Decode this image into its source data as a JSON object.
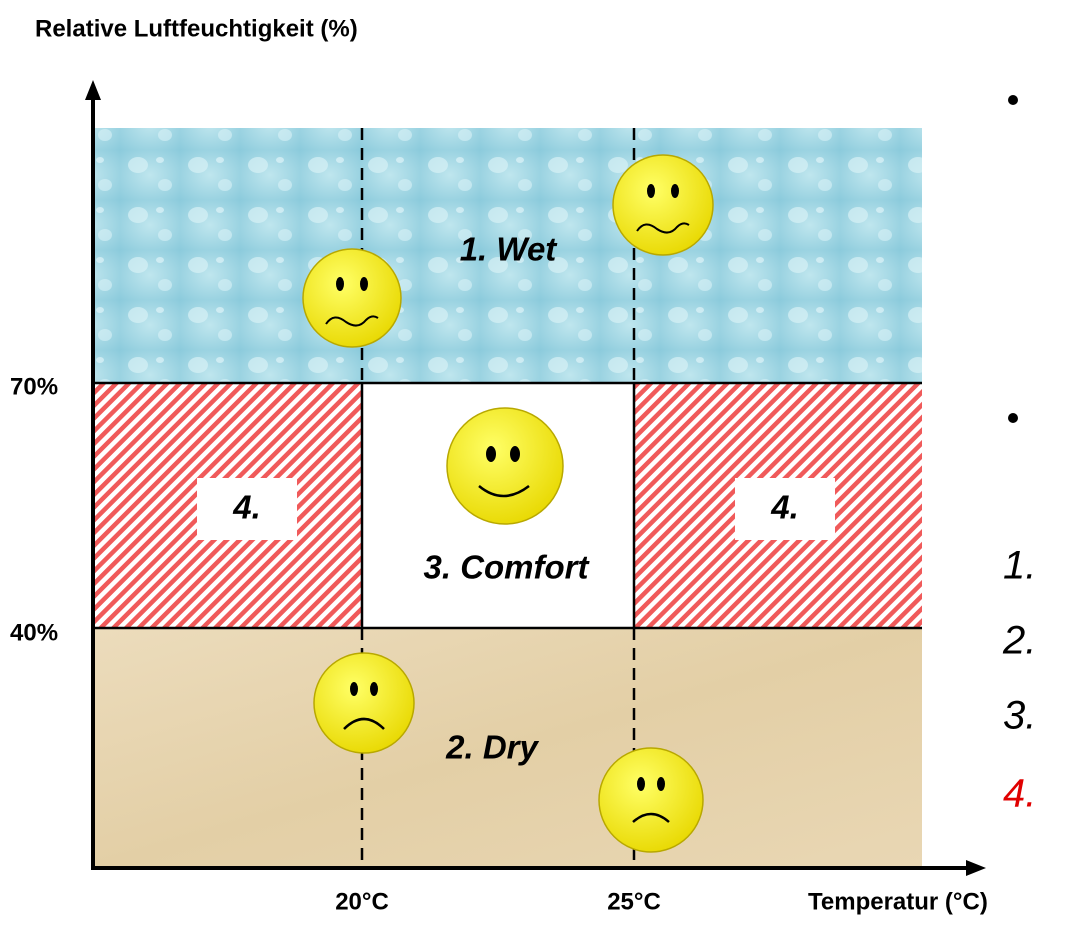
{
  "axis": {
    "y_title": "Relative Luftfeuchtigkeit (%)",
    "x_title": "Temperatur (°C)",
    "y_labels": [
      "70%",
      "40%"
    ],
    "x_labels": [
      "20°C",
      "25°C"
    ]
  },
  "regions": {
    "wet": "1. Wet",
    "comfort": "3. Comfort",
    "dry": "2. Dry",
    "other_left": "4.",
    "other_right": "4."
  },
  "list": [
    "1.",
    "2.",
    "3.",
    "4."
  ]
}
